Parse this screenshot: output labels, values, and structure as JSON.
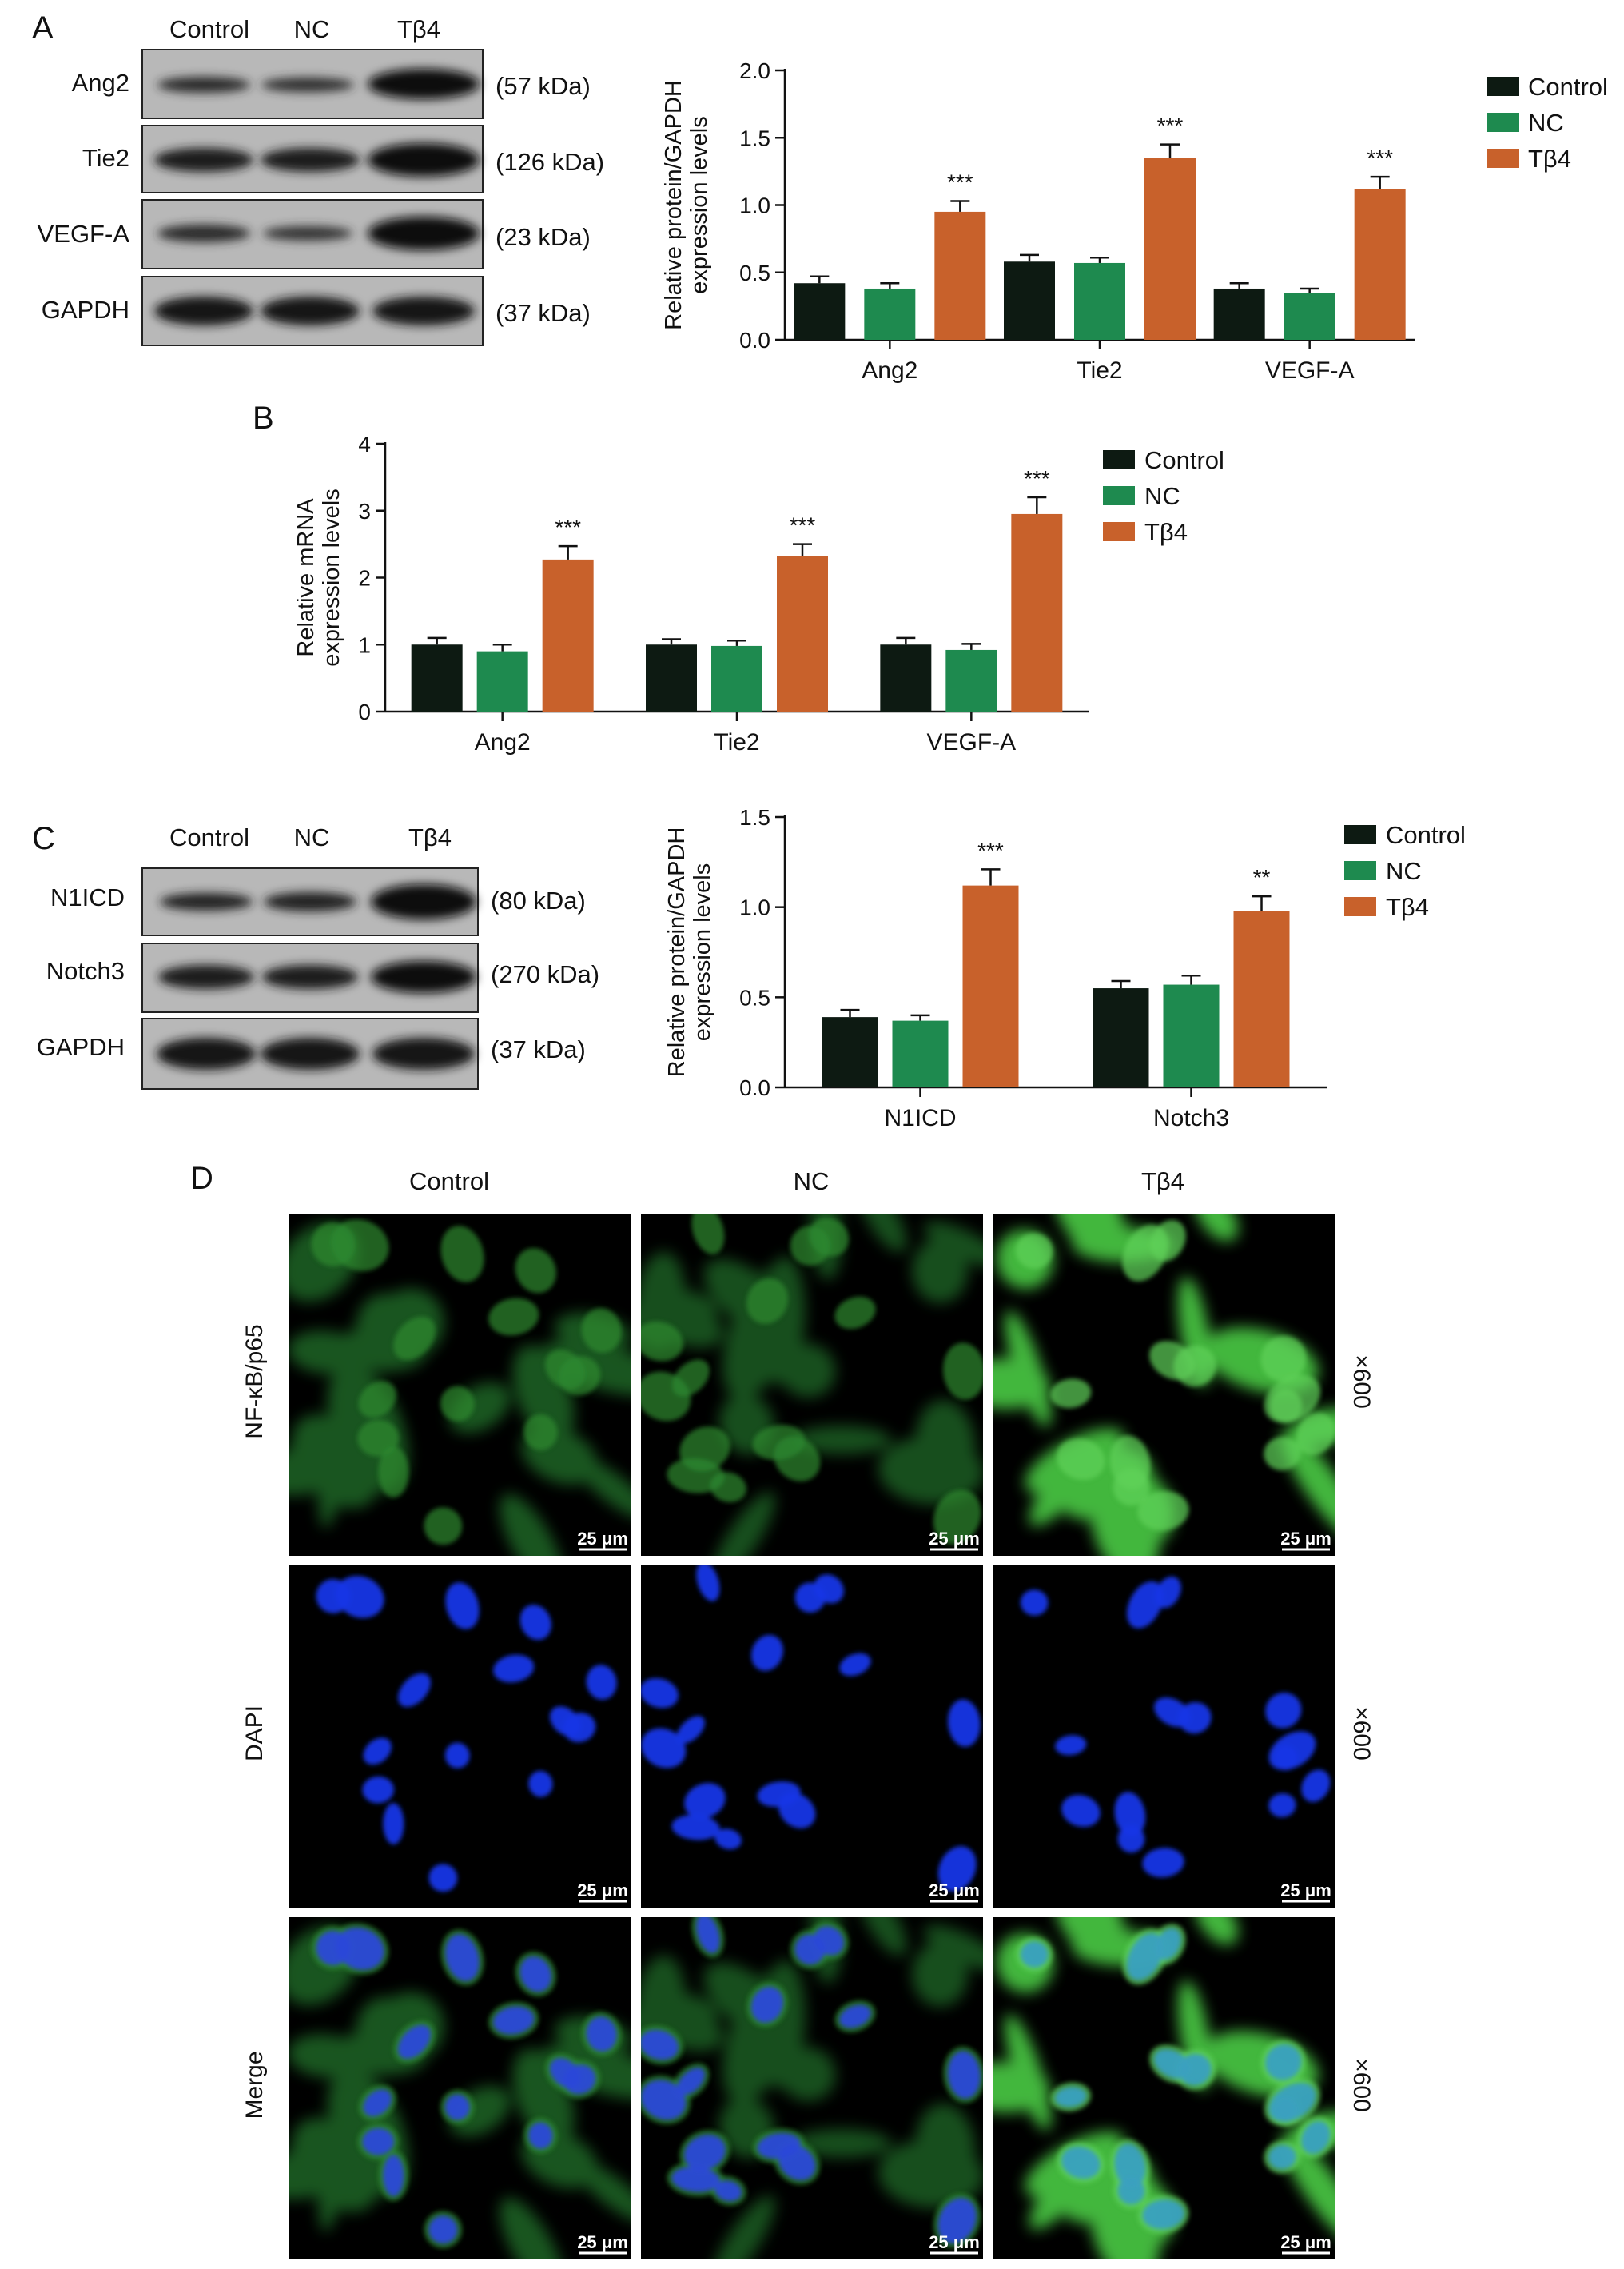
{
  "colors": {
    "Control": "#0d1a12",
    "NC": "#1e8a4f",
    "Tb4": "#c8612b"
  },
  "panels": {
    "A": {
      "label": "A",
      "blot": {
        "lane_labels": [
          "Control",
          "NC",
          "Tβ4"
        ],
        "bands": [
          {
            "name": "Ang2",
            "mw": "(57 kDa)"
          },
          {
            "name": "Tie2",
            "mw": "(126 kDa)"
          },
          {
            "name": "VEGF-A",
            "mw": "(23 kDa)"
          },
          {
            "name": "GAPDH",
            "mw": "(37 kDa)"
          }
        ]
      }
    },
    "B": {
      "label": "B"
    },
    "C": {
      "label": "C",
      "blot": {
        "lane_labels": [
          "Control",
          "NC",
          "Tβ4"
        ],
        "bands": [
          {
            "name": "N1ICD",
            "mw": "(80 kDa)"
          },
          {
            "name": "Notch3",
            "mw": "(270 kDa)"
          },
          {
            "name": "GAPDH",
            "mw": "(37 kDa)"
          }
        ]
      }
    },
    "D": {
      "label": "D",
      "columns": [
        "Control",
        "NC",
        "Tβ4"
      ],
      "rows": [
        "NF-κB/p65",
        "DAPI",
        "Merge"
      ],
      "magnification": "×600",
      "scale_bar": "25 μm"
    }
  },
  "chart_data": [
    {
      "type": "bar",
      "panel": "A",
      "categories": [
        "Ang2",
        "Tie2",
        "VEGF-A"
      ],
      "series": [
        {
          "name": "Control",
          "values": [
            0.42,
            0.58,
            0.38
          ],
          "errors": [
            0.05,
            0.05,
            0.04
          ]
        },
        {
          "name": "NC",
          "values": [
            0.38,
            0.57,
            0.35
          ],
          "errors": [
            0.04,
            0.04,
            0.03
          ]
        },
        {
          "name": "Tβ4",
          "values": [
            0.95,
            1.35,
            1.12
          ],
          "errors": [
            0.08,
            0.1,
            0.09
          ]
        }
      ],
      "annotations": [
        "***",
        "***",
        "***"
      ],
      "ylabel": "Relative protein/GAPDH expression levels",
      "ylabel_lines": [
        "Relative protein/GAPDH",
        "expression levels"
      ],
      "ylim": [
        0,
        2.0
      ],
      "yticks": [
        "0.0",
        "0.5",
        "1.0",
        "1.5",
        "2.0"
      ],
      "legend": "top-right"
    },
    {
      "type": "bar",
      "panel": "B",
      "categories": [
        "Ang2",
        "Tie2",
        "VEGF-A"
      ],
      "series": [
        {
          "name": "Control",
          "values": [
            1.0,
            1.0,
            1.0
          ],
          "errors": [
            0.1,
            0.08,
            0.1
          ]
        },
        {
          "name": "NC",
          "values": [
            0.9,
            0.98,
            0.92
          ],
          "errors": [
            0.1,
            0.08,
            0.09
          ]
        },
        {
          "name": "Tβ4",
          "values": [
            2.27,
            2.32,
            2.95
          ],
          "errors": [
            0.2,
            0.18,
            0.25
          ]
        }
      ],
      "annotations": [
        "***",
        "***",
        "***"
      ],
      "ylabel": "Relative mRNA expression levels",
      "ylabel_lines": [
        "Relative mRNA",
        "expression levels"
      ],
      "ylim": [
        0,
        4
      ],
      "yticks": [
        "0",
        "1",
        "2",
        "3",
        "4"
      ],
      "legend": "top-right"
    },
    {
      "type": "bar",
      "panel": "C",
      "categories": [
        "N1ICD",
        "Notch3"
      ],
      "series": [
        {
          "name": "Control",
          "values": [
            0.39,
            0.55
          ],
          "errors": [
            0.04,
            0.04
          ]
        },
        {
          "name": "NC",
          "values": [
            0.37,
            0.57
          ],
          "errors": [
            0.03,
            0.05
          ]
        },
        {
          "name": "Tβ4",
          "values": [
            1.12,
            0.98
          ],
          "errors": [
            0.09,
            0.08
          ]
        }
      ],
      "annotations": [
        "***",
        "**"
      ],
      "ylabel": "Relative protein/GAPDH expression levels",
      "ylabel_lines": [
        "Relative protein/GAPDH",
        "expression levels"
      ],
      "ylim": [
        0,
        1.5
      ],
      "yticks": [
        "0.0",
        "0.5",
        "1.0",
        "1.5"
      ],
      "legend": "top-right"
    }
  ]
}
